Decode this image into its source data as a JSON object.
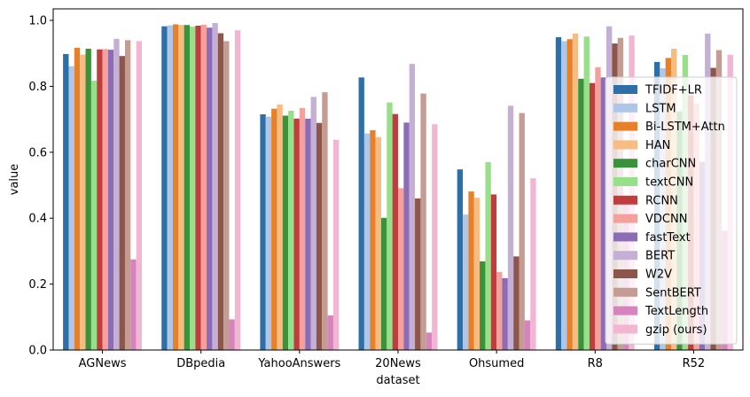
{
  "chart_data": {
    "type": "bar",
    "xlabel": "dataset",
    "ylabel": "value",
    "ylim": [
      0,
      1.035
    ],
    "yticks": [
      "0.0",
      "0.2",
      "0.4",
      "0.6",
      "0.8",
      "1.0"
    ],
    "grid": false,
    "legend_position": "right",
    "categories": [
      "AGNews",
      "DBpedia",
      "YahooAnswers",
      "20News",
      "Ohsumed",
      "R8",
      "R52"
    ],
    "series": [
      {
        "name": "TFIDF+LR",
        "color": "#2e6fa7",
        "values": [
          0.898,
          0.982,
          0.715,
          0.827,
          0.548,
          0.949,
          0.874
        ]
      },
      {
        "name": "LSTM",
        "color": "#aec7e8",
        "values": [
          0.861,
          0.985,
          0.708,
          0.657,
          0.411,
          0.937,
          0.855
        ]
      },
      {
        "name": "Bi-LSTM+Attn",
        "color": "#e6812a",
        "values": [
          0.917,
          0.988,
          0.732,
          0.667,
          0.481,
          0.943,
          0.886
        ]
      },
      {
        "name": "HAN",
        "color": "#f6bc82",
        "values": [
          0.896,
          0.986,
          0.745,
          0.646,
          0.462,
          0.96,
          0.914
        ]
      },
      {
        "name": "charCNN",
        "color": "#3a923a",
        "values": [
          0.914,
          0.986,
          0.711,
          0.401,
          0.269,
          0.823,
          0.724
        ]
      },
      {
        "name": "textCNN",
        "color": "#98df8a",
        "values": [
          0.817,
          0.981,
          0.726,
          0.751,
          0.57,
          0.951,
          0.895
        ]
      },
      {
        "name": "RCNN",
        "color": "#c03d3e",
        "values": [
          0.912,
          0.984,
          0.702,
          0.716,
          0.472,
          0.81,
          0.773
        ]
      },
      {
        "name": "VDCNN",
        "color": "#f4a09c",
        "values": [
          0.913,
          0.987,
          0.734,
          0.491,
          0.237,
          0.858,
          0.748
        ]
      },
      {
        "name": "fastText",
        "color": "#8c6cb5",
        "values": [
          0.911,
          0.978,
          0.702,
          0.69,
          0.218,
          0.827,
          0.571
        ]
      },
      {
        "name": "BERT",
        "color": "#c5b0d5",
        "values": [
          0.944,
          0.992,
          0.768,
          0.868,
          0.741,
          0.982,
          0.96
        ]
      },
      {
        "name": "W2V",
        "color": "#8c564b",
        "values": [
          0.892,
          0.961,
          0.689,
          0.46,
          0.284,
          0.93,
          0.856
        ]
      },
      {
        "name": "SentBERT",
        "color": "#c49c94",
        "values": [
          0.94,
          0.937,
          0.782,
          0.778,
          0.719,
          0.947,
          0.91
        ]
      },
      {
        "name": "TextLength",
        "color": "#d684bd",
        "values": [
          0.275,
          0.093,
          0.105,
          0.053,
          0.09,
          0.455,
          0.362
        ]
      },
      {
        "name": "gzip (ours)",
        "color": "#f2b6d2",
        "values": [
          0.937,
          0.97,
          0.638,
          0.685,
          0.521,
          0.954,
          0.896
        ]
      }
    ]
  }
}
